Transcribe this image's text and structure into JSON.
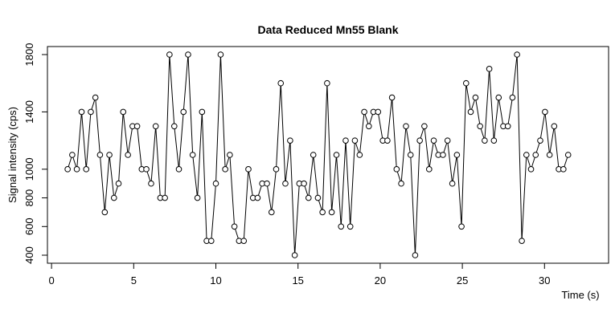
{
  "chart_data": {
    "type": "line",
    "title": "Data Reduced Mn55 Blank",
    "x_label": "Time (s)",
    "y_label": "Signal intensity (cps)",
    "xlim": [
      -0.25,
      33.9
    ],
    "ylim": [
      344,
      1856
    ],
    "xticks": [
      0,
      5,
      10,
      15,
      20,
      25,
      30
    ],
    "yticks": [
      400,
      600,
      800,
      1000,
      1400,
      1800
    ],
    "markers": true,
    "x": [
      0.98,
      1.26,
      1.54,
      1.83,
      2.11,
      2.39,
      2.67,
      2.95,
      3.24,
      3.52,
      3.8,
      4.08,
      4.36,
      4.65,
      4.93,
      5.21,
      5.49,
      5.77,
      6.06,
      6.34,
      6.62,
      6.9,
      7.18,
      7.47,
      7.75,
      8.03,
      8.31,
      8.59,
      8.88,
      9.16,
      9.44,
      9.72,
      10.0,
      10.29,
      10.57,
      10.85,
      11.13,
      11.41,
      11.7,
      11.98,
      12.26,
      12.54,
      12.82,
      13.11,
      13.39,
      13.67,
      13.95,
      14.23,
      14.52,
      14.8,
      15.08,
      15.36,
      15.64,
      15.93,
      16.21,
      16.49,
      16.77,
      17.05,
      17.34,
      17.62,
      17.9,
      18.18,
      18.46,
      18.75,
      19.03,
      19.31,
      19.59,
      19.87,
      20.16,
      20.44,
      20.72,
      21.0,
      21.28,
      21.57,
      21.85,
      22.13,
      22.41,
      22.69,
      22.98,
      23.26,
      23.54,
      23.82,
      24.1,
      24.39,
      24.67,
      24.95,
      25.23,
      25.51,
      25.8,
      26.08,
      26.36,
      26.64,
      26.92,
      27.21,
      27.49,
      27.77,
      28.05,
      28.33,
      28.62,
      28.9,
      29.18,
      29.46,
      29.74,
      30.03,
      30.31,
      30.59,
      30.87,
      31.15,
      31.44
    ],
    "series": [
      {
        "color": "#000000",
        "values": [
          1000,
          1100,
          1000,
          1400,
          1000,
          1400,
          1500,
          1100,
          700,
          1100,
          800,
          900,
          1400,
          1100,
          1300,
          1300,
          1000,
          1000,
          900,
          1300,
          800,
          800,
          1800,
          1300,
          1000,
          1400,
          1800,
          1100,
          800,
          1400,
          500,
          500,
          900,
          1800,
          1000,
          1100,
          600,
          500,
          500,
          1000,
          800,
          800,
          900,
          900,
          700,
          1000,
          1600,
          900,
          1200,
          400,
          900,
          900,
          800,
          1100,
          800,
          700,
          1600,
          700,
          1100,
          600,
          1200,
          600,
          1200,
          1100,
          1400,
          1300,
          1400,
          1400,
          1200,
          1200,
          1500,
          1000,
          900,
          1300,
          1100,
          400,
          1200,
          1300,
          1000,
          1200,
          1100,
          1100,
          1200,
          900,
          1100,
          600,
          1600,
          1400,
          1500,
          1300,
          1200,
          1700,
          1200,
          1500,
          1300,
          1300,
          1500,
          1800,
          500,
          1100,
          1000,
          1100,
          1200,
          1400,
          1100,
          1300,
          1000,
          1000,
          1100
        ]
      }
    ]
  }
}
